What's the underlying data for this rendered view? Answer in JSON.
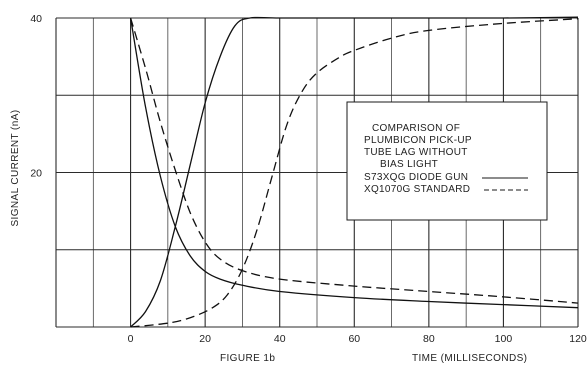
{
  "chart_data": {
    "type": "line",
    "ylabel": "SIGNAL CURRENT (nA)",
    "xlabel": "TIME (MILLISECONDS)",
    "caption": "FIGURE 1b",
    "xlim": [
      -20,
      120
    ],
    "ylim": [
      0,
      40
    ],
    "x_ticks": [
      0,
      20,
      40,
      60,
      80,
      100,
      120
    ],
    "y_ticks": [
      20,
      40
    ],
    "grid": true,
    "legend": {
      "placement": "center-right",
      "title_lines": [
        "COMPARISON OF",
        "PLUMBICON PICK-UP",
        "TUBE LAG WITHOUT",
        "BIAS LIGHT"
      ],
      "entries": [
        "S73XQG DIODE GUN",
        "XQ1070G STANDARD"
      ]
    },
    "series": [
      {
        "name": "S73XQG DIODE GUN",
        "style": "solid",
        "kind": "rise",
        "x": [
          0,
          4,
          8,
          12,
          16,
          20,
          24,
          28,
          32,
          40,
          60,
          80,
          100,
          120
        ],
        "y": [
          0,
          2,
          6,
          13,
          21,
          29,
          35,
          39,
          40,
          40,
          40,
          40,
          40,
          40.1
        ]
      },
      {
        "name": "XQ1070G STANDARD",
        "style": "dashed",
        "kind": "rise",
        "x": [
          0,
          10,
          16,
          22,
          26,
          30,
          34,
          38,
          42,
          46,
          50,
          56,
          60,
          70,
          80,
          100,
          120
        ],
        "y": [
          0,
          0.5,
          1.2,
          2.5,
          4.2,
          7.5,
          12.7,
          19.6,
          26.3,
          30.5,
          32.9,
          34.9,
          35.8,
          37.4,
          38.4,
          39.3,
          39.9
        ]
      },
      {
        "name": "S73XQG DIODE GUN",
        "style": "solid",
        "kind": "decay",
        "x": [
          0,
          4,
          8,
          12,
          16,
          20,
          24,
          30,
          40,
          60,
          80,
          100,
          120
        ],
        "y": [
          40,
          28.5,
          19.5,
          13,
          9.2,
          7.2,
          6.2,
          5.4,
          4.6,
          3.8,
          3.3,
          2.9,
          2.5
        ]
      },
      {
        "name": "XQ1070G STANDARD",
        "style": "dashed",
        "kind": "decay",
        "x": [
          0,
          4,
          8,
          12,
          16,
          20,
          24,
          30,
          40,
          60,
          80,
          100,
          120
        ],
        "y": [
          40,
          33.5,
          26.5,
          20.3,
          14.8,
          11,
          8.8,
          7.3,
          6.2,
          5.3,
          4.6,
          3.9,
          3.1
        ]
      }
    ]
  }
}
